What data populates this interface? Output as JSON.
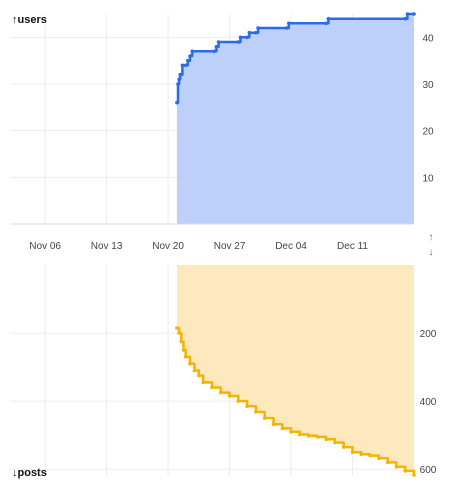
{
  "chart_data": [
    {
      "type": "area",
      "title": "↑users",
      "x_tick_labels": [
        "Nov 06",
        "Nov 13",
        "Nov 20",
        "Nov 27",
        "Dec 04",
        "Dec 11"
      ],
      "x_range": [
        "2023-11-02",
        "2023-12-18"
      ],
      "y_ticks": [
        10,
        20,
        30,
        40
      ],
      "ylim": [
        0,
        45
      ],
      "y_axis_side": "right",
      "grid": true,
      "series": [
        {
          "color": "#2b6be6",
          "fill": "#bcd0f9",
          "points": [
            [
              "2023-11-21T00:00",
              26
            ],
            [
              "2023-11-21T03:00",
              30
            ],
            [
              "2023-11-21T06:00",
              31
            ],
            [
              "2023-11-21T09:00",
              32
            ],
            [
              "2023-11-21T15:00",
              34
            ],
            [
              "2023-11-22T00:00",
              34
            ],
            [
              "2023-11-22T06:00",
              35
            ],
            [
              "2023-11-22T12:00",
              36
            ],
            [
              "2023-11-22T18:00",
              37
            ],
            [
              "2023-11-25T06:00",
              37
            ],
            [
              "2023-11-25T12:00",
              38
            ],
            [
              "2023-11-25T18:00",
              39
            ],
            [
              "2023-11-28T00:00",
              39
            ],
            [
              "2023-11-28T06:00",
              40
            ],
            [
              "2023-11-29T00:00",
              40
            ],
            [
              "2023-11-29T06:00",
              41
            ],
            [
              "2023-11-30T00:00",
              41
            ],
            [
              "2023-11-30T06:00",
              42
            ],
            [
              "2023-12-03T12:00",
              42
            ],
            [
              "2023-12-03T18:00",
              43
            ],
            [
              "2023-12-08T00:00",
              43
            ],
            [
              "2023-12-08T06:00",
              44
            ],
            [
              "2023-12-17T00:00",
              44
            ],
            [
              "2023-12-17T06:00",
              45
            ],
            [
              "2023-12-18T00:00",
              45
            ]
          ]
        }
      ]
    },
    {
      "type": "area",
      "title": "↓posts",
      "x_range": [
        "2023-11-02",
        "2023-12-18"
      ],
      "y_ticks": [
        200,
        400,
        600
      ],
      "ylim": [
        0,
        620
      ],
      "y_inverted": true,
      "y_axis_side": "right",
      "grid": true,
      "series": [
        {
          "color": "#f4b400",
          "fill": "#fde9bd",
          "points": [
            [
              "2023-11-21T00:00",
              185
            ],
            [
              "2023-11-21T06:00",
              200
            ],
            [
              "2023-11-21T12:00",
              225
            ],
            [
              "2023-11-21T18:00",
              250
            ],
            [
              "2023-11-22T00:00",
              270
            ],
            [
              "2023-11-22T12:00",
              290
            ],
            [
              "2023-11-23T00:00",
              310
            ],
            [
              "2023-11-23T12:00",
              325
            ],
            [
              "2023-11-24T00:00",
              345
            ],
            [
              "2023-11-25T00:00",
              360
            ],
            [
              "2023-11-26T00:00",
              375
            ],
            [
              "2023-11-27T00:00",
              385
            ],
            [
              "2023-11-28T00:00",
              400
            ],
            [
              "2023-11-29T00:00",
              415
            ],
            [
              "2023-11-30T00:00",
              432
            ],
            [
              "2023-12-01T00:00",
              450
            ],
            [
              "2023-12-02T00:00",
              468
            ],
            [
              "2023-12-03T00:00",
              480
            ],
            [
              "2023-12-04T00:00",
              490
            ],
            [
              "2023-12-05T00:00",
              498
            ],
            [
              "2023-12-06T00:00",
              502
            ],
            [
              "2023-12-07T00:00",
              505
            ],
            [
              "2023-12-08T00:00",
              512
            ],
            [
              "2023-12-09T00:00",
              522
            ],
            [
              "2023-12-10T00:00",
              535
            ],
            [
              "2023-12-11T00:00",
              550
            ],
            [
              "2023-12-12T00:00",
              556
            ],
            [
              "2023-12-13T00:00",
              560
            ],
            [
              "2023-12-14T00:00",
              568
            ],
            [
              "2023-12-15T00:00",
              580
            ],
            [
              "2023-12-16T00:00",
              593
            ],
            [
              "2023-12-17T00:00",
              605
            ],
            [
              "2023-12-18T00:00",
              617
            ]
          ]
        }
      ]
    }
  ],
  "controls": {
    "up_arrow": "↑",
    "down_arrow": "↓"
  }
}
